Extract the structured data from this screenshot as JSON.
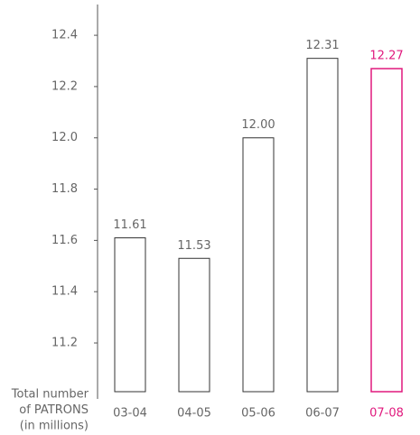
{
  "chart_data": {
    "type": "bar",
    "ylabel": [
      "Total number",
      "of PATRONS",
      "(in millions)"
    ],
    "categories": [
      "03-04",
      "04-05",
      "05-06",
      "06-07",
      "07-08"
    ],
    "values": [
      11.61,
      11.53,
      12.0,
      12.31,
      12.27
    ],
    "value_labels": [
      "11.61",
      "11.53",
      "12.00",
      "12.31",
      "12.27"
    ],
    "colors": [
      "#333333",
      "#333333",
      "#333333",
      "#333333",
      "#e0197d"
    ],
    "ylim": [
      11.01,
      12.52
    ],
    "yticks": [
      11.2,
      11.4,
      11.6,
      11.8,
      {
        "value": 12,
        "label": "12.0"
      },
      12.2,
      12.4
    ],
    "grid": false
  }
}
